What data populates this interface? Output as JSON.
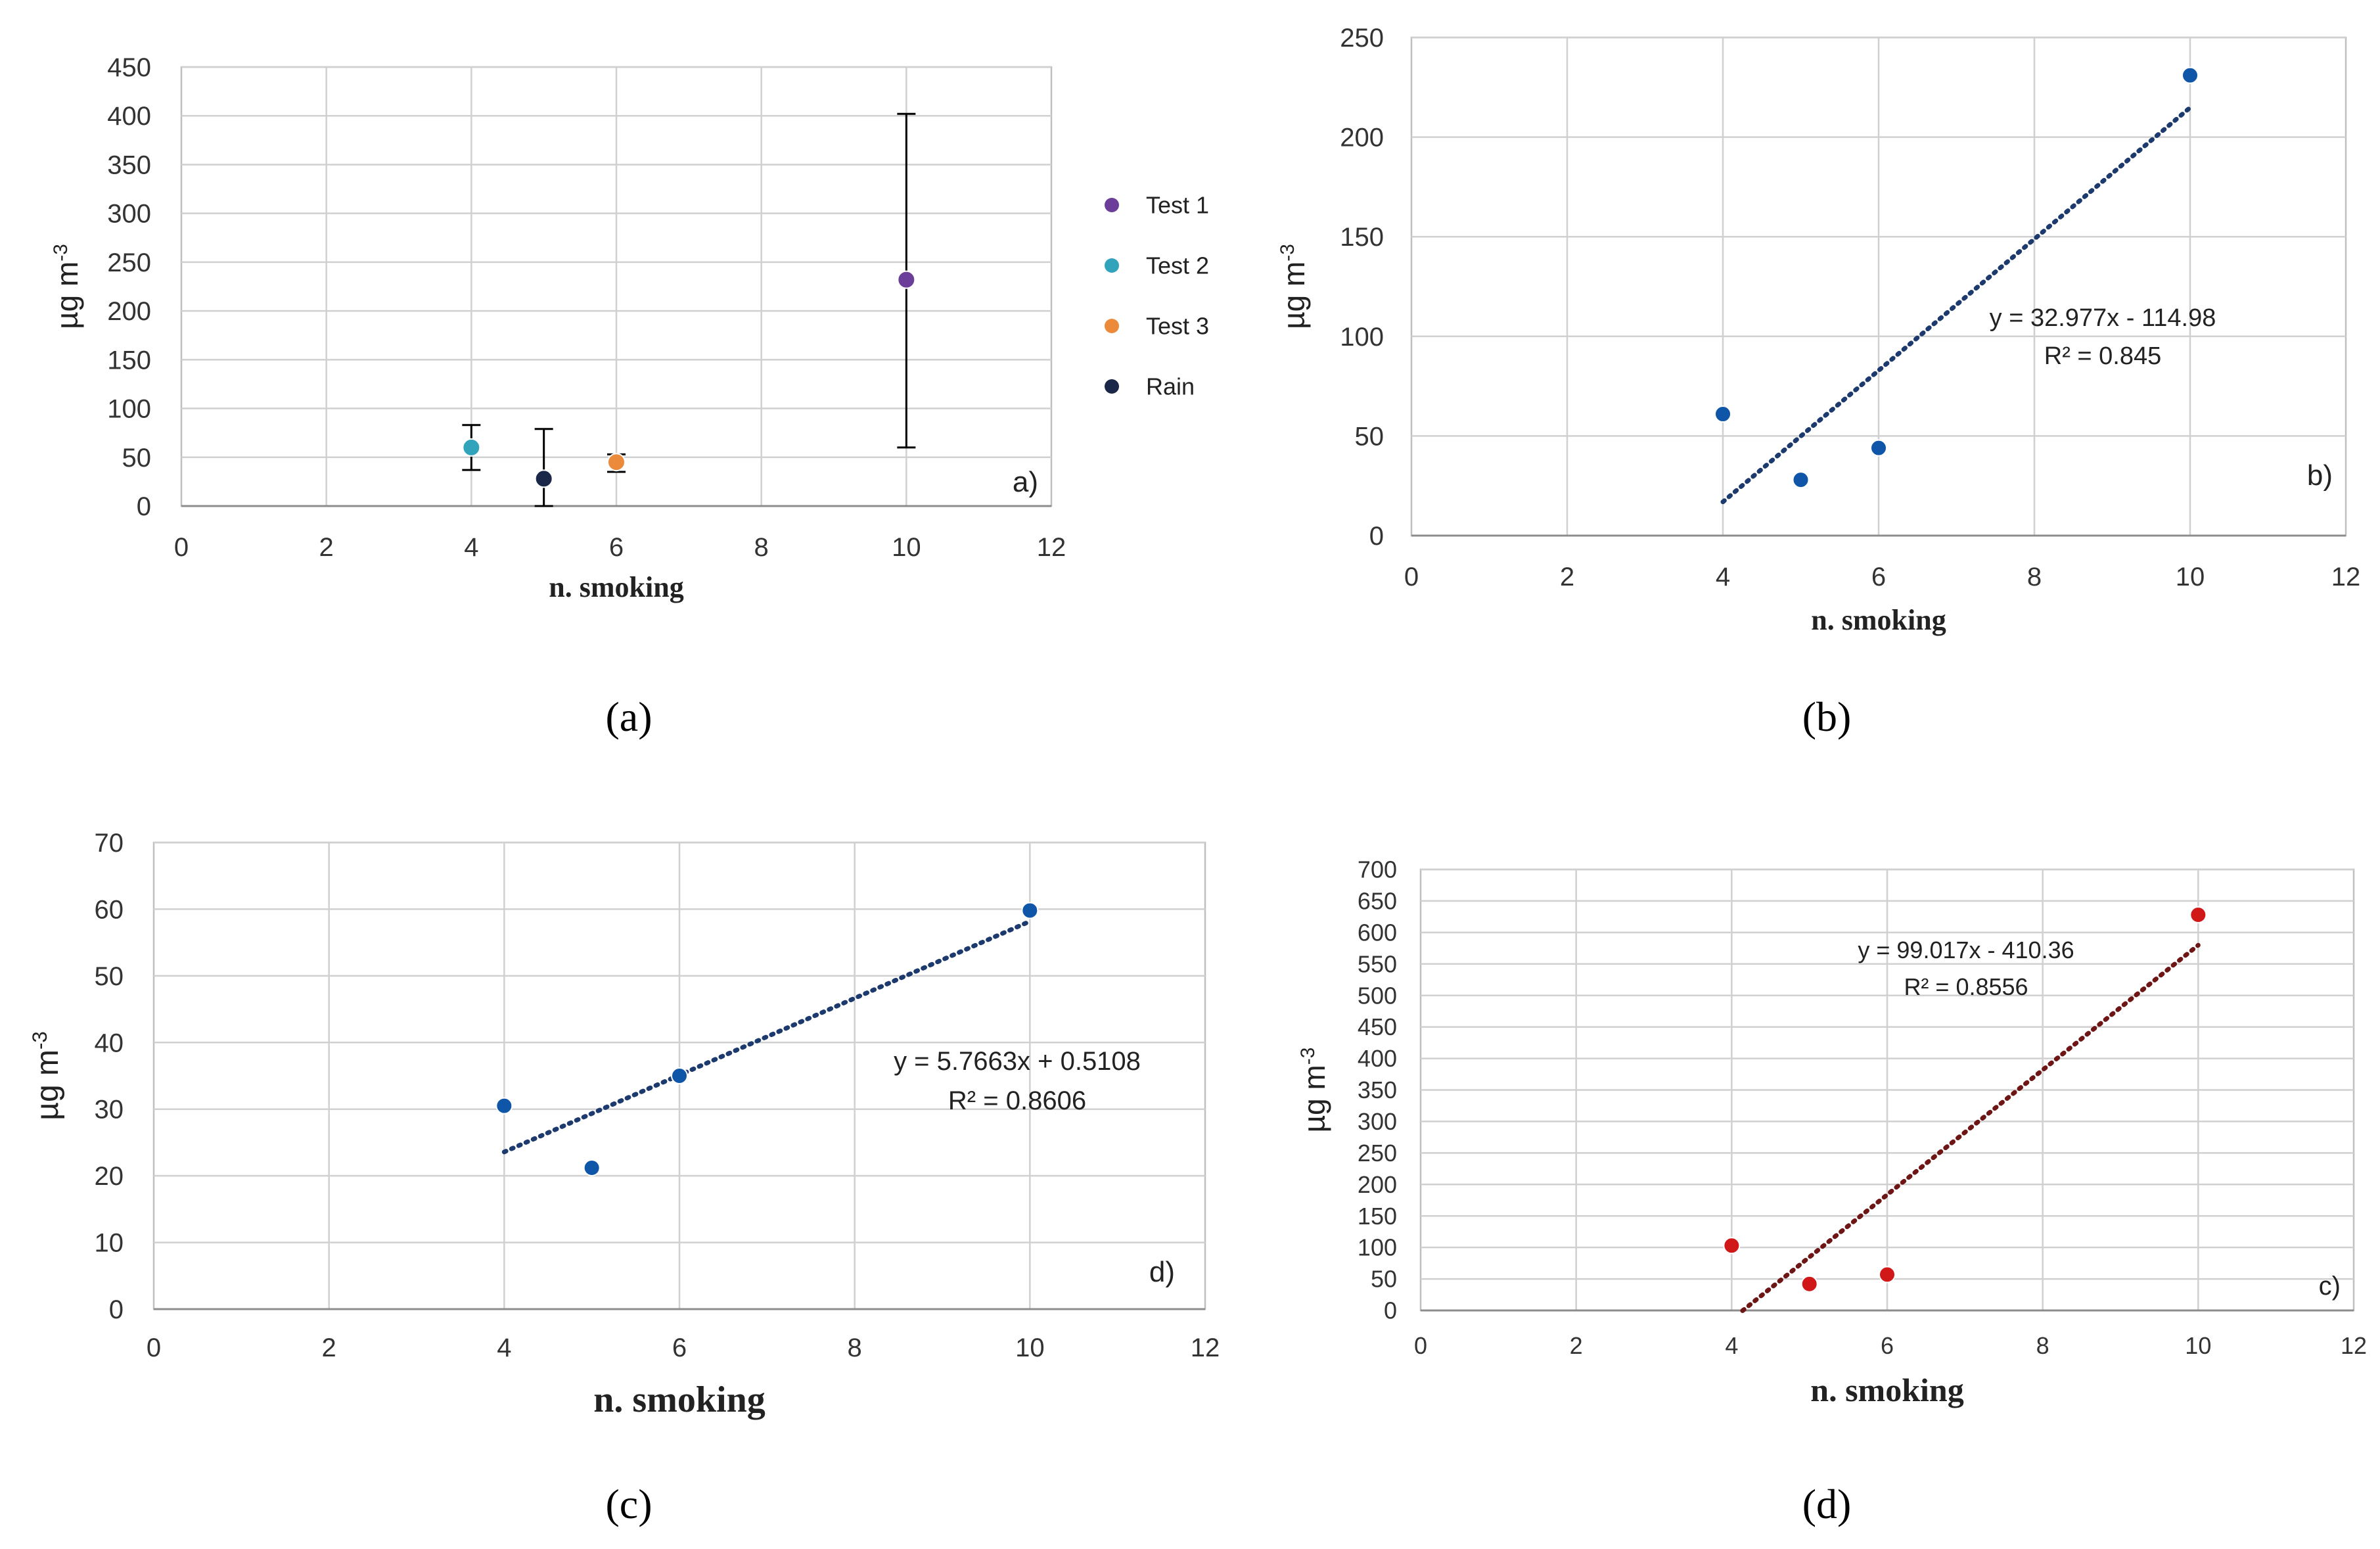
{
  "chart_data": [
    {
      "type": "scatter",
      "xlabel": "n. smoking",
      "ylabel": "µg m",
      "ylabel_sup": "-3",
      "xlim": [
        0,
        12
      ],
      "ylim": [
        0,
        450
      ],
      "xticks": [
        0,
        2,
        4,
        6,
        8,
        10,
        12
      ],
      "yticks": [
        0,
        50,
        100,
        150,
        200,
        250,
        300,
        350,
        400,
        450
      ],
      "grid": true,
      "panel_label": "a)",
      "caption": "(a)",
      "legend_position": "right",
      "series": [
        {
          "name": "Test 1",
          "color": "#6b3f99",
          "points": [
            {
              "x": 10,
              "y": 232,
              "err_low": 60,
              "err_high": 402
            }
          ]
        },
        {
          "name": "Test 2",
          "color": "#31a3bb",
          "points": [
            {
              "x": 4,
              "y": 60,
              "err_low": 37,
              "err_high": 83
            }
          ]
        },
        {
          "name": "Test 3",
          "color": "#ea8a3a",
          "points": [
            {
              "x": 6,
              "y": 45,
              "err_low": 35,
              "err_high": 53
            }
          ]
        },
        {
          "name": "Rain",
          "color": "#1a2749",
          "points": [
            {
              "x": 5,
              "y": 28,
              "err_low": 0,
              "err_high": 79
            }
          ]
        }
      ]
    },
    {
      "type": "scatter",
      "xlabel": "n. smoking",
      "ylabel": "µg m",
      "ylabel_sup": "-3",
      "xlim": [
        0,
        12
      ],
      "ylim": [
        0,
        250
      ],
      "xticks": [
        0,
        2,
        4,
        6,
        8,
        10,
        12
      ],
      "yticks": [
        0,
        50,
        100,
        150,
        200,
        250
      ],
      "grid": true,
      "panel_label": "b)",
      "caption": "(b)",
      "marker_color": "#0f55a8",
      "trend_color": "#1c3a6e",
      "x": [
        4,
        5,
        6,
        10
      ],
      "y": [
        61,
        28,
        44,
        231
      ],
      "trendline": {
        "slope": 32.977,
        "intercept": -114.98,
        "x_range": [
          4,
          10
        ]
      },
      "equation": "y = 32.977x - 114.98",
      "r2": "R² = 0.845"
    },
    {
      "type": "scatter",
      "xlabel": "n. smoking",
      "ylabel": "µg m",
      "ylabel_sup": "-3",
      "xlim": [
        0,
        12
      ],
      "ylim": [
        0,
        70
      ],
      "xticks": [
        0,
        2,
        4,
        6,
        8,
        10,
        12
      ],
      "yticks": [
        0,
        10,
        20,
        30,
        40,
        50,
        60,
        70
      ],
      "grid": true,
      "panel_label": "d)",
      "caption": "(c)",
      "marker_color": "#0f55a8",
      "trend_color": "#1c3a6e",
      "x": [
        4,
        5,
        6,
        10
      ],
      "y": [
        30.5,
        21.2,
        35,
        59.8
      ],
      "trendline": {
        "slope": 5.7663,
        "intercept": 0.5108,
        "x_range": [
          4,
          10
        ]
      },
      "equation": "y = 5.7663x + 0.5108",
      "r2": "R² = 0.8606"
    },
    {
      "type": "scatter",
      "xlabel": "n. smoking",
      "ylabel": "µg m",
      "ylabel_sup": "-3",
      "xlim": [
        0,
        12
      ],
      "ylim": [
        0,
        700
      ],
      "xticks": [
        0,
        2,
        4,
        6,
        8,
        10,
        12
      ],
      "yticks": [
        0,
        50,
        100,
        150,
        200,
        250,
        300,
        350,
        400,
        450,
        500,
        550,
        600,
        650,
        700
      ],
      "grid": true,
      "panel_label": "c)",
      "caption": "(d)",
      "marker_color": "#d01818",
      "trend_color": "#6e1616",
      "x": [
        4,
        5,
        6,
        10
      ],
      "y": [
        103,
        42,
        57,
        628
      ],
      "trendline": {
        "slope": 99.017,
        "intercept": -410.36,
        "x_range": [
          4.14,
          10
        ]
      },
      "equation": "y = 99.017x - 410.36",
      "r2": "R² = 0.8556"
    }
  ]
}
